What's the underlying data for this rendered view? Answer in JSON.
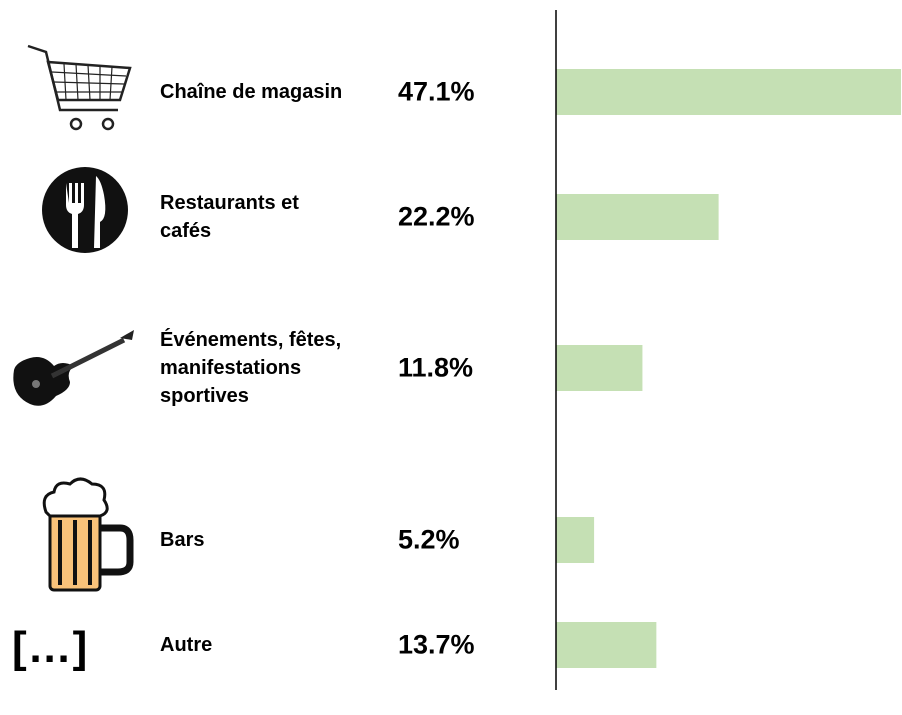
{
  "chart_data": {
    "type": "bar",
    "orientation": "horizontal",
    "categories": [
      "Chaîne de magasin",
      "Restaurants et cafés",
      "Événements, fêtes, manifestations sportives",
      "Bars",
      "Autre"
    ],
    "values": [
      47.1,
      22.2,
      11.8,
      5.2,
      13.7
    ],
    "value_labels": [
      "47.1%",
      "22.2%",
      "11.8%",
      "5.2%",
      "13.7%"
    ],
    "color": "#c5e0b4",
    "icon_text": "[…]"
  }
}
